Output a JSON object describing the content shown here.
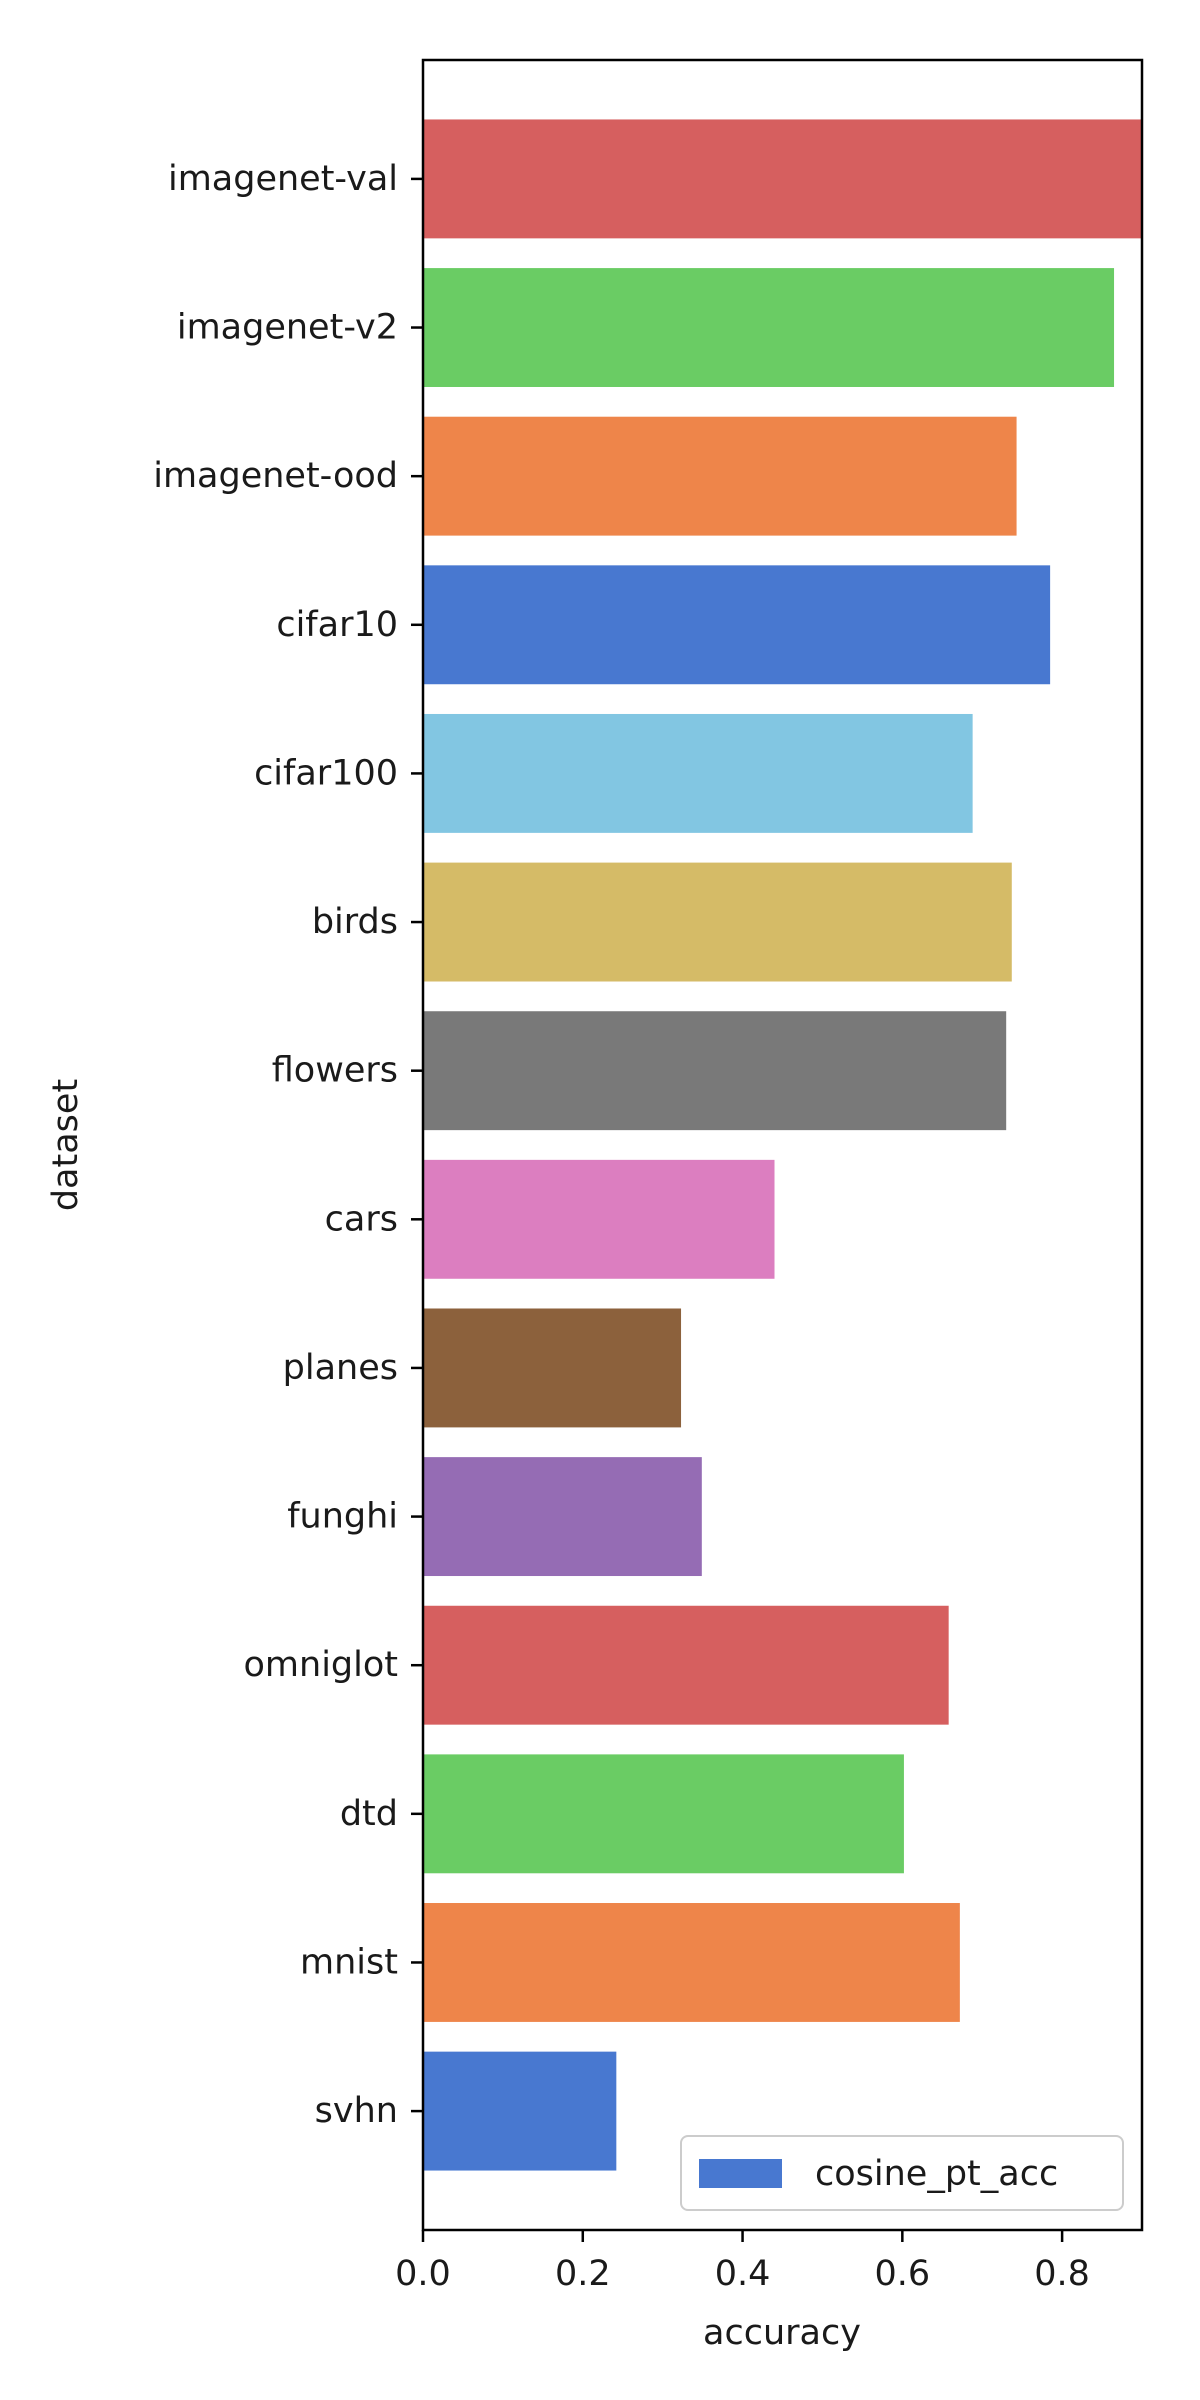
{
  "chart_data": {
    "type": "bar",
    "orientation": "horizontal",
    "title": "",
    "xlabel": "accuracy",
    "ylabel": "dataset",
    "xlim": [
      0,
      0.9
    ],
    "x_ticks": [
      "0.0",
      "0.2",
      "0.4",
      "0.6",
      "0.8"
    ],
    "x_tick_values": [
      0,
      0.2,
      0.4,
      0.6,
      0.8
    ],
    "grid": false,
    "legend_position": "bottom-right",
    "legend": [
      {
        "label": "cosine_pt_acc",
        "color": "#4878d0"
      }
    ],
    "categories": [
      "imagenet-val",
      "imagenet-v2",
      "imagenet-ood",
      "cifar10",
      "cifar100",
      "birds",
      "flowers",
      "cars",
      "planes",
      "funghi",
      "omniglot",
      "dtd",
      "mnist",
      "svhn"
    ],
    "series": [
      {
        "name": "cosine_pt_acc",
        "values": [
          0.9,
          0.865,
          0.743,
          0.785,
          0.688,
          0.737,
          0.73,
          0.44,
          0.323,
          0.349,
          0.658,
          0.602,
          0.672,
          0.242
        ],
        "colors": [
          "#d65f5f",
          "#6acc64",
          "#ee854a",
          "#4878d0",
          "#82c6e2",
          "#d5bb67",
          "#797979",
          "#dc7ec0",
          "#8c613c",
          "#956cb4",
          "#d65f5f",
          "#6acc64",
          "#ee854a",
          "#4878d0"
        ]
      }
    ]
  }
}
